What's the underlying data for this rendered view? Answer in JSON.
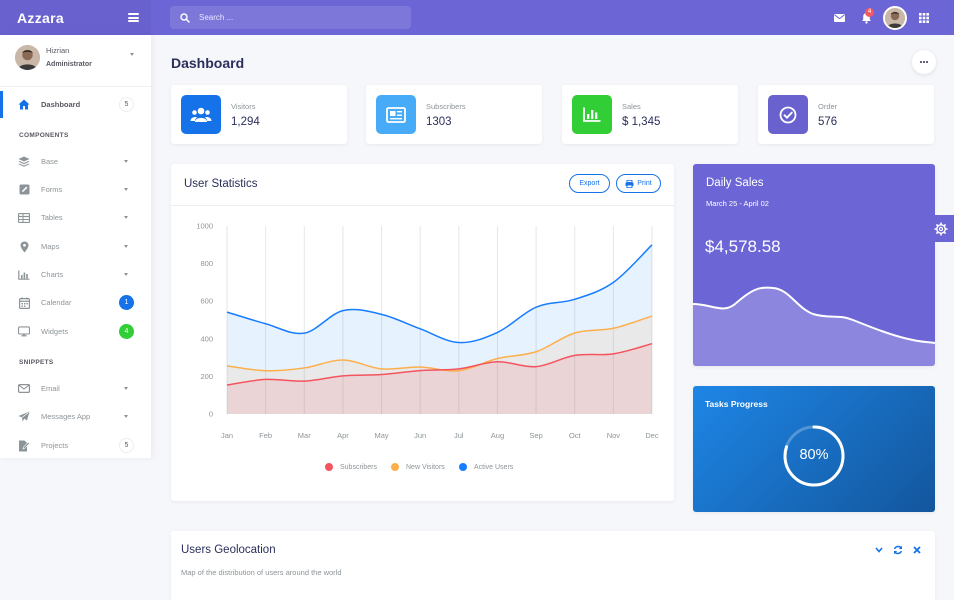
{
  "app": {
    "name": "Azzara"
  },
  "search": {
    "placeholder": "Search ..."
  },
  "topbar": {
    "notification_count": "4",
    "icons": [
      "envelope-icon",
      "bell-icon",
      "avatar",
      "grid-icon"
    ]
  },
  "user": {
    "name": "Hizrian",
    "role": "Administrator"
  },
  "sidebar": {
    "items": [
      {
        "label": "Dashboard",
        "icon": "home-icon",
        "badge": "5"
      },
      {
        "label": "Base",
        "icon": "layers-icon"
      },
      {
        "label": "Forms",
        "icon": "pen-square-icon"
      },
      {
        "label": "Tables",
        "icon": "table-icon"
      },
      {
        "label": "Maps",
        "icon": "map-marker-icon"
      },
      {
        "label": "Charts",
        "icon": "bar-chart-icon"
      },
      {
        "label": "Calendar",
        "icon": "calendar-icon",
        "badge": "1"
      },
      {
        "label": "Widgets",
        "icon": "desktop-icon",
        "badge": "4"
      },
      {
        "label": "Email",
        "icon": "envelope-icon"
      },
      {
        "label": "Messages App",
        "icon": "paper-plane-icon"
      },
      {
        "label": "Projects",
        "icon": "file-icon",
        "badge": "5"
      }
    ],
    "sections": {
      "components": "COMPONENTS",
      "snippets": "SNIPPETS"
    }
  },
  "page": {
    "title": "Dashboard"
  },
  "stats": [
    {
      "label": "Visitors",
      "value": "1,294",
      "color": "#1572e8",
      "icon": "users-icon"
    },
    {
      "label": "Subscribers",
      "value": "1303",
      "color": "#48abf7",
      "icon": "newspaper-icon"
    },
    {
      "label": "Sales",
      "value": "$ 1,345",
      "color": "#31ce36",
      "icon": "bar-chart-icon"
    },
    {
      "label": "Order",
      "value": "576",
      "color": "#6861ce",
      "icon": "check-circle-icon"
    }
  ],
  "user_statistics": {
    "title": "User Statistics",
    "export_label": "Export",
    "print_label": "Print"
  },
  "chart_data": {
    "type": "area",
    "categories": [
      "Jan",
      "Feb",
      "Mar",
      "Apr",
      "May",
      "Jun",
      "Jul",
      "Aug",
      "Sep",
      "Oct",
      "Nov",
      "Dec"
    ],
    "series": [
      {
        "name": "Subscribers",
        "color": "#f3545d",
        "values": [
          154,
          184,
          175,
          203,
          210,
          231,
          240,
          278,
          252,
          312,
          320,
          374
        ]
      },
      {
        "name": "New Visitors",
        "color": "#fdaf4b",
        "values": [
          256,
          230,
          245,
          287,
          240,
          250,
          230,
          295,
          331,
          431,
          456,
          521
        ]
      },
      {
        "name": "Active Users",
        "color": "#177dff",
        "values": [
          542,
          480,
          430,
          550,
          530,
          453,
          380,
          434,
          568,
          610,
          700,
          900
        ]
      }
    ],
    "ylim": [
      0,
      1000
    ],
    "yticks": [
      0,
      200,
      400,
      600,
      800,
      1000
    ],
    "grid": true,
    "legend": "bottom"
  },
  "daily_sales": {
    "title": "Daily Sales",
    "range": "March 25 - April 02",
    "amount": "$4,578.58"
  },
  "tasks_progress": {
    "title": "Tasks Progress",
    "percent": "80%",
    "value": 0.8
  },
  "geolocation": {
    "title": "Users Geolocation",
    "subtitle": "Map of the distribution of users around the world"
  }
}
